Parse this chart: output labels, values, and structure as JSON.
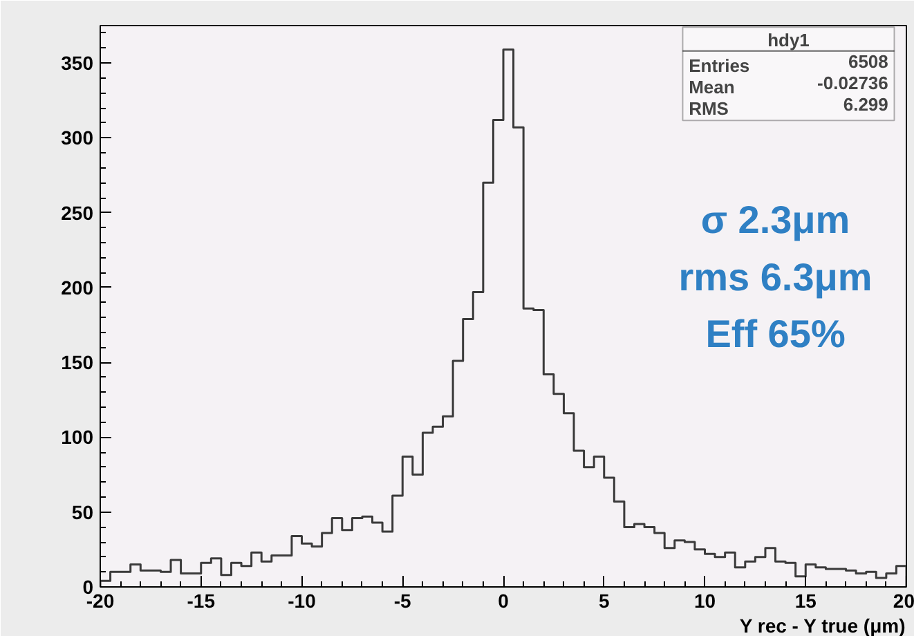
{
  "chart_data": {
    "type": "histogram",
    "xlabel": "Y rec - Y true (μm)",
    "bins": [
      -20,
      -19.5,
      -19,
      -18.5,
      -18,
      -17.5,
      -17,
      -16.5,
      -16,
      -15.5,
      -15,
      -14.5,
      -14,
      -13.5,
      -13,
      -12.5,
      -12,
      -11.5,
      -11,
      -10.5,
      -10,
      -9.5,
      -9,
      -8.5,
      -8,
      -7.5,
      -7,
      -6.5,
      -6,
      -5.5,
      -5,
      -4.5,
      -4,
      -3.5,
      -3,
      -2.5,
      -2,
      -1.5,
      -1,
      -0.5,
      0,
      0.5,
      1,
      1.5,
      2,
      2.5,
      3,
      3.5,
      4,
      4.5,
      5,
      5.5,
      6,
      6.5,
      7,
      7.5,
      8,
      8.5,
      9,
      9.5,
      10,
      10.5,
      11,
      11.5,
      12,
      12.5,
      13,
      13.5,
      14,
      14.5,
      15,
      15.5,
      16,
      16.5,
      17,
      17.5,
      18,
      18.5,
      19,
      19.5,
      20
    ],
    "values": [
      4,
      10,
      10,
      15,
      11,
      11,
      10,
      18,
      9,
      9,
      16,
      19,
      8,
      16,
      14,
      23,
      17,
      21,
      21,
      34,
      29,
      27,
      36,
      46,
      38,
      46,
      47,
      43,
      37,
      61,
      87,
      75,
      103,
      107,
      114,
      151,
      179,
      197,
      270,
      312,
      359,
      307,
      186,
      185,
      142,
      129,
      116,
      91,
      80,
      87,
      73,
      57,
      40,
      42,
      40,
      36,
      26,
      31,
      30,
      25,
      22,
      20,
      23,
      13,
      17,
      20,
      26,
      17,
      16,
      7,
      15,
      13,
      12,
      12,
      11,
      9,
      10,
      6,
      9,
      14
    ],
    "color": "#3a3a3a",
    "xlim": [
      -20,
      20
    ],
    "ylim": [
      0,
      375
    ],
    "xticks": [
      -20,
      -15,
      -10,
      -5,
      0,
      5,
      10,
      15,
      20
    ],
    "yticks": [
      0,
      50,
      100,
      150,
      200,
      250,
      300,
      350
    ],
    "grid": false,
    "annotations": [
      "hdy1",
      "Entries",
      "6508",
      "Mean",
      "-0.02736",
      "RMS",
      "6.299",
      "σ 2.3μm",
      "rms 6.3μm",
      "Eff 65%"
    ]
  }
}
